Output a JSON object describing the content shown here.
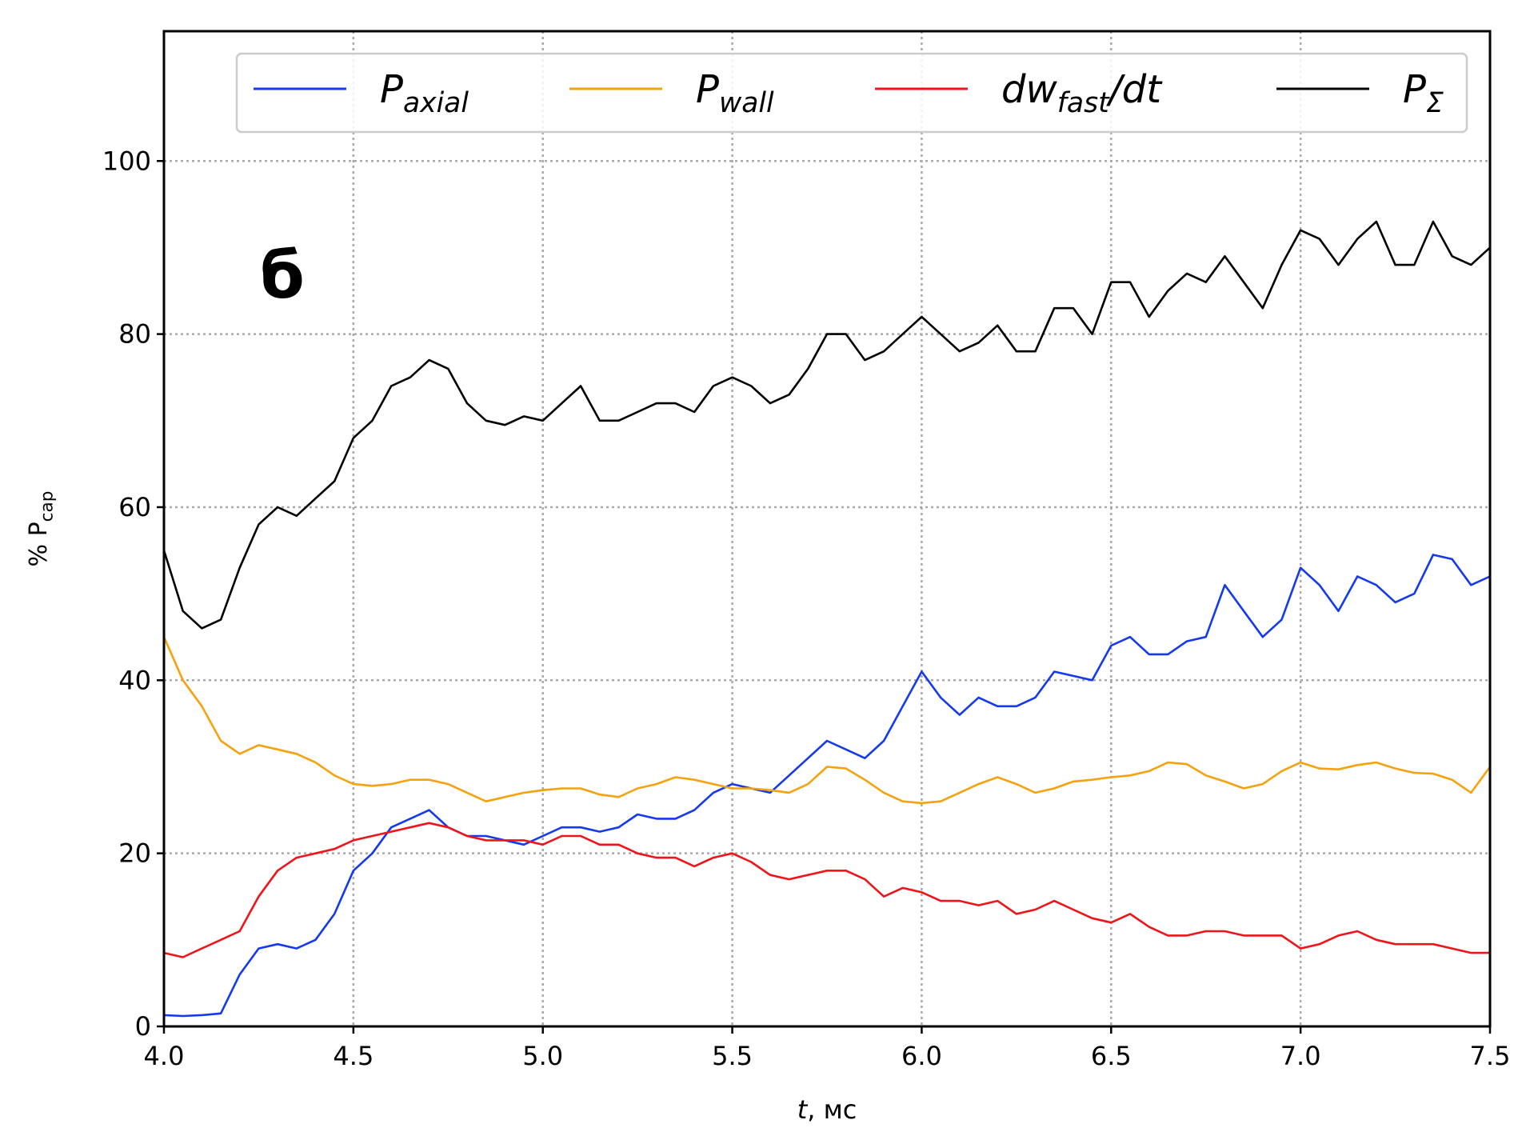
{
  "chart_data": {
    "type": "line",
    "annotation": "б",
    "xlabel": "t, мс",
    "ylabel": "% P_cap",
    "x": [
      4.0,
      4.05,
      4.1,
      4.15,
      4.2,
      4.25,
      4.3,
      4.35,
      4.4,
      4.45,
      4.5,
      4.55,
      4.6,
      4.65,
      4.7,
      4.75,
      4.8,
      4.85,
      4.9,
      4.95,
      5.0,
      5.05,
      5.1,
      5.15,
      5.2,
      5.25,
      5.3,
      5.35,
      5.4,
      5.45,
      5.5,
      5.55,
      5.6,
      5.65,
      5.7,
      5.75,
      5.8,
      5.85,
      5.9,
      5.95,
      6.0,
      6.05,
      6.1,
      6.15,
      6.2,
      6.25,
      6.3,
      6.35,
      6.4,
      6.45,
      6.5,
      6.55,
      6.6,
      6.65,
      6.7,
      6.75,
      6.8,
      6.85,
      6.9,
      6.95,
      7.0,
      7.05,
      7.1,
      7.15,
      7.2,
      7.25,
      7.3,
      7.35,
      7.4,
      7.45,
      7.5
    ],
    "series": [
      {
        "name": "P_axial",
        "color": "#1439f0",
        "values": [
          1.3,
          1.2,
          1.3,
          1.5,
          6,
          9,
          9.5,
          9,
          10,
          13,
          18,
          20,
          23,
          24,
          25,
          23,
          22,
          22,
          21.5,
          21,
          22,
          23,
          23,
          22.5,
          23,
          24.5,
          24,
          24,
          25,
          27,
          28,
          27.5,
          27,
          29,
          31,
          33,
          32,
          31,
          33,
          37,
          41,
          38,
          36,
          38,
          37,
          37,
          38,
          41,
          40.5,
          40,
          44,
          45,
          43,
          43,
          44.5,
          45,
          51,
          48,
          45,
          47,
          53,
          51,
          48,
          52,
          51,
          49,
          50,
          54.5,
          54,
          51,
          52
        ]
      },
      {
        "name": "P_wall",
        "color": "#f5a20e",
        "values": [
          45,
          40,
          37,
          33,
          31.5,
          32.5,
          32,
          31.5,
          30.5,
          29,
          28,
          27.8,
          28,
          28.5,
          28.5,
          28,
          27,
          26,
          26.5,
          27,
          27.3,
          27.5,
          27.5,
          26.8,
          26.5,
          27.5,
          28,
          28.8,
          28.5,
          28,
          27.5,
          27.5,
          27.3,
          27,
          28,
          30,
          29.8,
          28.5,
          27,
          26,
          25.8,
          26,
          27,
          28,
          28.8,
          28,
          27,
          27.5,
          28.3,
          28.5,
          28.8,
          29,
          29.5,
          30.5,
          30.3,
          29,
          28.3,
          27.5,
          28,
          29.5,
          30.5,
          29.8,
          29.7,
          30.2,
          30.5,
          29.8,
          29.3,
          29.2,
          28.5,
          27,
          30
        ]
      },
      {
        "name": "dw_fast/dt",
        "color": "#f0141a",
        "values": [
          8.5,
          8,
          9,
          10,
          11,
          15,
          18,
          19.5,
          20,
          20.5,
          21.5,
          22,
          22.5,
          23,
          23.5,
          23,
          22,
          21.5,
          21.5,
          21.5,
          21,
          22,
          22,
          21,
          21,
          20,
          19.5,
          19.5,
          18.5,
          19.5,
          20,
          19,
          17.5,
          17,
          17.5,
          18,
          18,
          17,
          15,
          16,
          15.5,
          14.5,
          14.5,
          14,
          14.5,
          13,
          13.5,
          14.5,
          13.5,
          12.5,
          12,
          13,
          11.5,
          10.5,
          10.5,
          11,
          11,
          10.5,
          10.5,
          10.5,
          9,
          9.5,
          10.5,
          11,
          10,
          9.5,
          9.5,
          9.5,
          9,
          8.5,
          8.5
        ]
      },
      {
        "name": "P_Σ",
        "color": "#000000",
        "values": [
          55,
          48,
          46,
          47,
          53,
          58,
          60,
          59,
          61,
          63,
          68,
          70,
          74,
          75,
          77,
          76,
          72,
          70,
          69.5,
          70.5,
          70,
          72,
          74,
          70,
          70,
          71,
          72,
          72,
          71,
          74,
          75,
          74,
          72,
          73,
          76,
          80,
          80,
          77,
          78,
          80,
          82,
          80,
          78,
          79,
          81,
          78,
          78,
          83,
          83,
          80,
          86,
          86,
          82,
          85,
          87,
          86,
          89,
          86,
          83,
          88,
          92,
          91,
          88,
          91,
          93,
          88,
          88,
          93,
          89,
          88,
          90
        ]
      }
    ],
    "xlim": [
      4.0,
      7.5
    ],
    "xticks": [
      {
        "value": 4,
        "label": "4.0"
      },
      4.5,
      {
        "value": 5,
        "label": "5.0"
      },
      5.5,
      {
        "value": 6,
        "label": "6.0"
      },
      6.5,
      {
        "value": 7,
        "label": "7.0"
      },
      7.5
    ],
    "ylim": [
      0,
      115
    ],
    "yticks": [
      0,
      20,
      40,
      60,
      80,
      100
    ],
    "grid": true,
    "legend": "top"
  }
}
